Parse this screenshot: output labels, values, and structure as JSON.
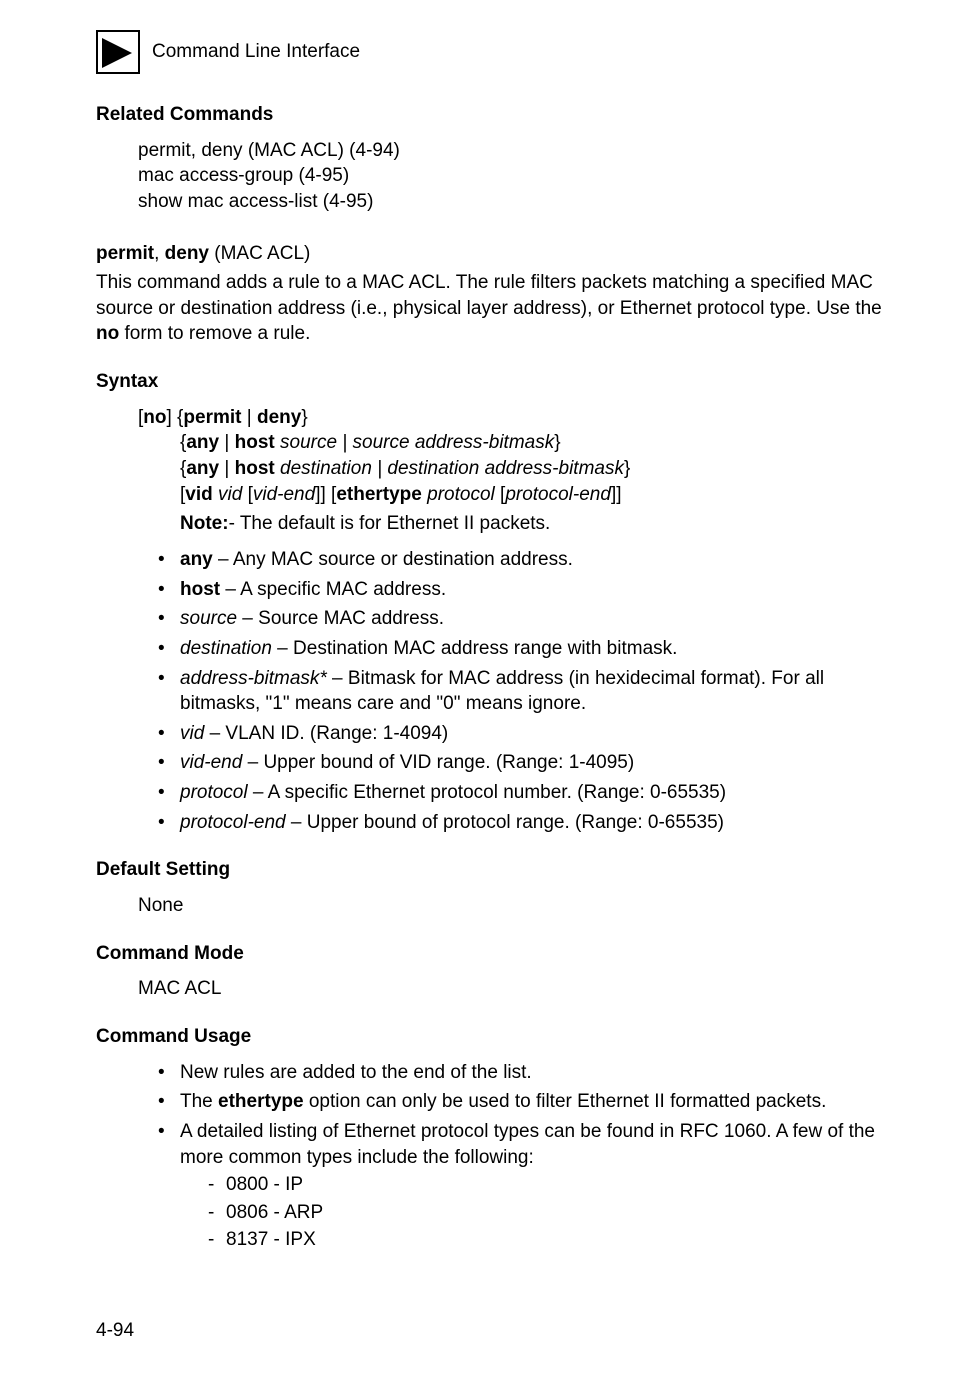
{
  "header": {
    "text": "Command Line Interface"
  },
  "related": {
    "heading": "Related Commands",
    "lines": [
      "permit, deny (MAC ACL) (4-94)",
      "mac access-group (4-95)",
      "show mac access-list (4-95)"
    ]
  },
  "cmd": {
    "title_prefix_bold1": "permit",
    "title_sep": ", ",
    "title_prefix_bold2": "deny",
    "title_tail": " (MAC ACL)",
    "desc_a": "This command adds a rule to a MAC ACL. The rule filters packets matching a specified MAC source or destination address (i.e., physical layer address), or Ethernet protocol type. Use the ",
    "desc_no": "no",
    "desc_b": " form to remove a rule."
  },
  "syntax": {
    "heading": "Syntax",
    "line1": {
      "lb": "[",
      "no": "no",
      "mid": "] {",
      "permit": "permit",
      "bar": " | ",
      "deny": "deny",
      "rb": "}"
    },
    "line2": {
      "lb": "{",
      "any": "any",
      "bar": " | ",
      "host": "host",
      "sp": " ",
      "src": "source",
      "bar2": " | ",
      "sab": "source address-bitmask",
      "rb": "}"
    },
    "line3": {
      "lb": "{",
      "any": "any",
      "bar": " | ",
      "host": "host",
      "sp": " ",
      "dst": "destination",
      "bar2": " | ",
      "dab": "destination address-bitmask",
      "rb": "}"
    },
    "line4": {
      "lb": "[",
      "vid": "vid",
      "sp": " ",
      "vidi": "vid",
      "sp2": " [",
      "vide": "vid-end",
      "mid": "]] [",
      "eth": "ethertype",
      "sp3": " ",
      "proto": "protocol",
      "sp4": " [",
      "protoe": "protocol-end",
      "rb": "]]"
    },
    "note_b": "Note:",
    "note_t": "- The default is for Ethernet II packets."
  },
  "params": [
    {
      "bold": "any",
      "tail": " – Any MAC source or destination address."
    },
    {
      "bold": "host",
      "tail": " – A specific MAC address."
    },
    {
      "italic": "source",
      "tail": " – Source MAC address."
    },
    {
      "italic": "destination",
      "tail": " – Destination MAC address range with bitmask."
    },
    {
      "italic": "address-bitmask*",
      "tail": " – Bitmask for MAC address (in hexidecimal format). For all bitmasks, \"1\" means care and \"0\" means ignore."
    },
    {
      "pre": " ",
      "italic": "vid",
      "tail": " – VLAN ID. (Range: 1-4094)"
    },
    {
      "italic": "vid-end",
      "tail": " – Upper bound of VID range. (Range: 1-4095)"
    },
    {
      "italic": "protocol",
      "tail": " – A specific Ethernet protocol number. (Range: 0-65535)"
    },
    {
      "italic": "protocol-end",
      "tail": " – Upper bound of protocol range. (Range: 0-65535)"
    }
  ],
  "default": {
    "heading": "Default Setting",
    "value": "None"
  },
  "mode": {
    "heading": "Command Mode",
    "value": "MAC ACL"
  },
  "usage": {
    "heading": "Command Usage",
    "items": [
      {
        "plain": "New rules are added to the end of the list."
      },
      {
        "pre": "The ",
        "bold": "ethertype",
        "post": " option can only be used to filter Ethernet II formatted packets."
      },
      {
        "plain": "A detailed listing of Ethernet protocol types can be found in RFC 1060. A few of the more common types include the following:",
        "sub": [
          "0800 - IP",
          "0806 - ARP",
          "8137 - IPX"
        ]
      }
    ]
  },
  "pagenum": "4-94"
}
